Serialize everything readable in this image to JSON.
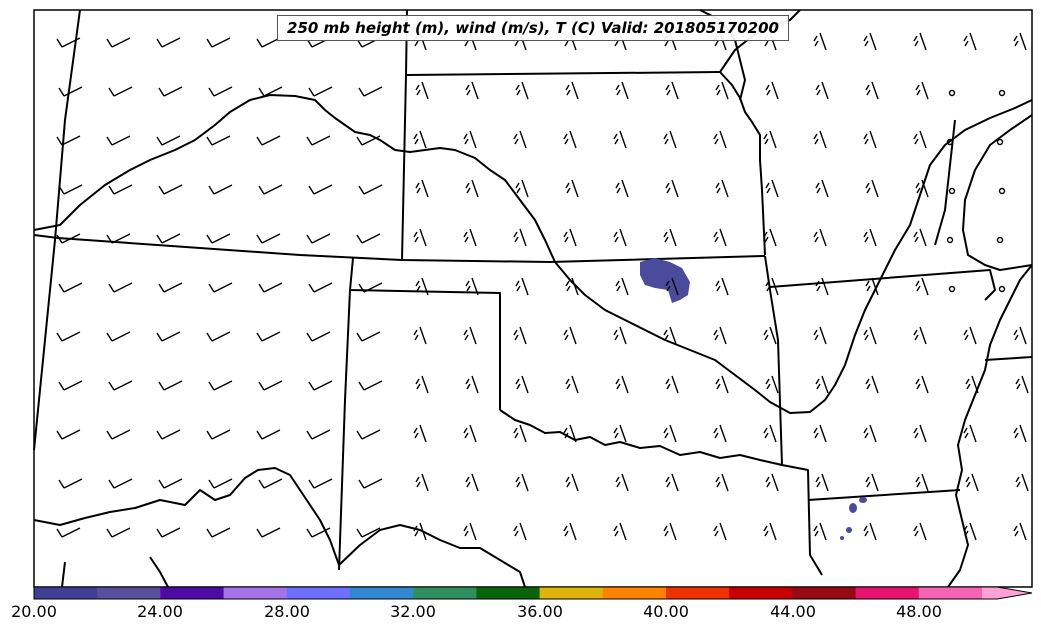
{
  "map": {
    "title": "250 mb height (m), wind (m/s), T (C) Valid: 201805170200"
  },
  "colorbar": {
    "ticks": [
      "20.00",
      "24.00",
      "28.00",
      "32.00",
      "36.00",
      "40.00",
      "44.00",
      "48.00"
    ],
    "colors": [
      "#3f3f96",
      "#5a4f9d",
      "#4e0aa5",
      "#a673e6",
      "#6f6fff",
      "#3287d2",
      "#2f8f5f",
      "#0a640a",
      "#dcb40a",
      "#ff8200",
      "#f03200",
      "#c80000",
      "#960a14",
      "#e6146e",
      "#f564b4",
      "#ffa0d7"
    ],
    "extend": "max"
  },
  "colors": {
    "border": "#000000",
    "temperature_contour_fill": "#4b4b9b"
  }
}
